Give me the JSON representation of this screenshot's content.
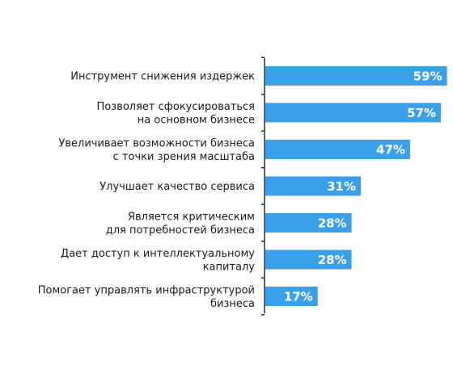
{
  "chart_data": {
    "type": "bar",
    "orientation": "horizontal",
    "categories": [
      [
        "Инструмент снижения издержек"
      ],
      [
        "Позволяет сфокусироваться",
        "на основном бизнесе"
      ],
      [
        "Увеличивает возможности бизнеса",
        "с точки зрения масштаба"
      ],
      [
        "Улучшает качество сервиса"
      ],
      [
        "Является критическим",
        "для потребностей бизнеса"
      ],
      [
        "Дает доступ к интеллектуальному",
        "капиталу"
      ],
      [
        "Помогает управлять инфраструктурой",
        "бизнеса"
      ]
    ],
    "values": [
      59,
      57,
      47,
      31,
      28,
      28,
      17
    ],
    "value_labels": [
      "59%",
      "57%",
      "47%",
      "31%",
      "28%",
      "28%",
      "17%"
    ],
    "bar_color": "#3aa0ea",
    "xlim": [
      0,
      60
    ],
    "grid": false
  }
}
